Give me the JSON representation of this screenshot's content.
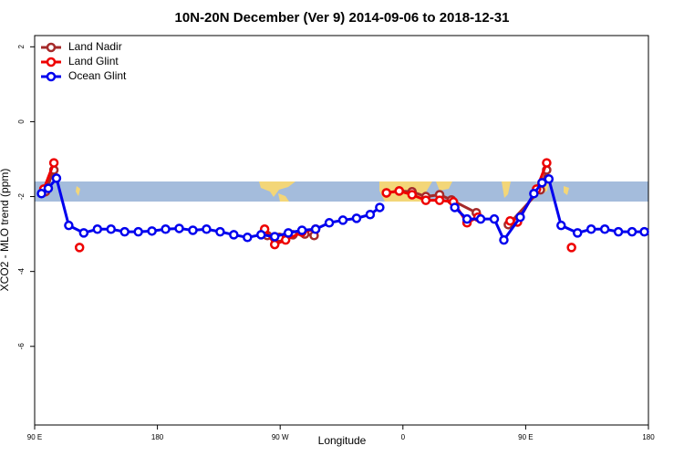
{
  "chart_data": {
    "type": "line",
    "title": "10N-20N December (Ver 9)   2014-09-06 to 2018-12-31",
    "x_label": "Longitude",
    "y_label": "XCO2 - MLO trend (ppm)",
    "xlim": [
      90,
      540
    ],
    "xticks": [
      {
        "value": 90,
        "label": "90 E"
      },
      180,
      {
        "value": 270,
        "label": "90 W"
      },
      {
        "value": 360,
        "label": "0"
      },
      {
        "value": 450,
        "label": "90 E"
      },
      {
        "value": 540,
        "label": "180"
      }
    ],
    "ylim": [
      -8.1,
      2.3
    ],
    "yticks": [
      -6,
      -4,
      -2,
      0,
      2
    ],
    "legend": "top-left",
    "series": [
      {
        "name": "Land Nadir",
        "color": "#a52a2a",
        "x": [
          97.9,
          104.1,
          null,
          260.6,
          269.4,
          279.4,
          288.1,
          294.9,
          null,
          347.9,
          357.3,
          366.7,
          376.8,
          386.9,
          395.6,
          413.8,
          null,
          437.3,
          460.8,
          465.4
        ],
        "values": [
          -1.87,
          -1.29,
          null,
          -3.04,
          -3.09,
          -3.02,
          -3.0,
          -3.04,
          null,
          -1.9,
          -1.85,
          -1.87,
          -2.0,
          -1.95,
          -2.09,
          -2.43,
          null,
          -2.75,
          -1.82,
          -1.29
        ]
      },
      {
        "name": "Land Glint",
        "color": "#ee0000",
        "x": [
          96.7,
          104.1,
          null,
          122.9,
          null,
          258.6,
          266.0,
          274.0,
          286.0,
          296.0,
          null,
          347.9,
          357.3,
          366.7,
          376.8,
          386.9,
          397.0,
          407.0,
          415.0,
          null,
          438.6,
          444.0,
          458.0,
          465.4,
          null,
          483.6
        ],
        "values": [
          -1.8,
          -1.1,
          null,
          -3.36,
          null,
          -2.87,
          -3.28,
          -3.16,
          -2.95,
          -2.87,
          null,
          -1.9,
          -1.85,
          -1.95,
          -2.1,
          -2.1,
          -2.14,
          -2.7,
          -2.55,
          null,
          -2.65,
          -2.68,
          -1.8,
          -1.1,
          null,
          -3.36
        ]
      },
      {
        "name": "Ocean Glint",
        "color": "#0000ee",
        "x": [
          95,
          100,
          106,
          115,
          126,
          136,
          146,
          156,
          166,
          176,
          186,
          196,
          206,
          216,
          226,
          236,
          246,
          256,
          266,
          276,
          286,
          296,
          306,
          316,
          326,
          336,
          343,
          null,
          398,
          407,
          417,
          427,
          434,
          446,
          456,
          462,
          467,
          476,
          488,
          498,
          508,
          518,
          528,
          537
        ],
        "values": [
          -1.92,
          -1.78,
          -1.51,
          -2.77,
          -2.97,
          -2.87,
          -2.87,
          -2.94,
          -2.94,
          -2.92,
          -2.87,
          -2.85,
          -2.9,
          -2.87,
          -2.94,
          -3.02,
          -3.09,
          -3.02,
          -3.07,
          -2.97,
          -2.9,
          -2.87,
          -2.7,
          -2.63,
          -2.58,
          -2.48,
          -2.29,
          null,
          -2.29,
          -2.6,
          -2.6,
          -2.6,
          -3.16,
          -2.55,
          -1.92,
          -1.63,
          -1.53,
          -2.77,
          -2.97,
          -2.87,
          -2.87,
          -2.94,
          -2.94,
          -2.94
        ]
      }
    ]
  }
}
